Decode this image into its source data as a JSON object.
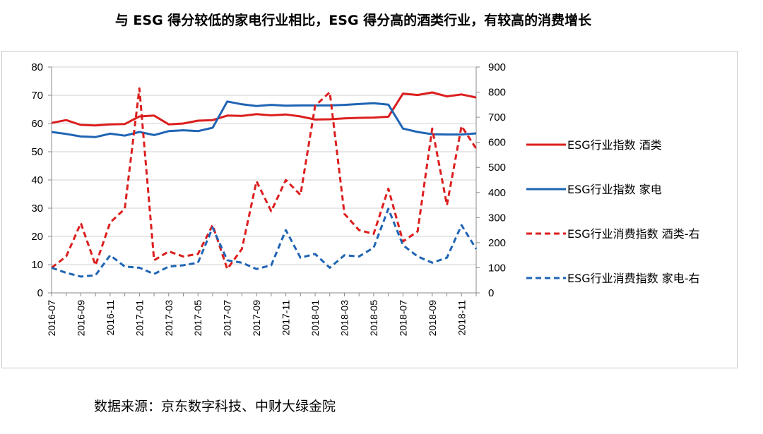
{
  "title": "与 ESG 得分较低的家电行业相比，ESG  得分高的酒类行业，有较高的消费增长",
  "source": "数据来源：京东数字科技、中财大绿金院",
  "chart_data": {
    "type": "line",
    "left_ylim": [
      0,
      80
    ],
    "left_yticks": [
      "0",
      "10",
      "20",
      "30",
      "40",
      "50",
      "60",
      "70",
      "80"
    ],
    "right_ylim": [
      0,
      900
    ],
    "right_yticks": [
      "0",
      "100",
      "200",
      "300",
      "400",
      "500",
      "600",
      "700",
      "800",
      "900"
    ],
    "grid": "horizontal",
    "legend_position": "right",
    "x": [
      "2016-07",
      "2016-08",
      "2016-09",
      "2016-10",
      "2016-11",
      "2016-12",
      "2017-01",
      "2017-02",
      "2017-03",
      "2017-04",
      "2017-05",
      "2017-06",
      "2017-07",
      "2017-08",
      "2017-09",
      "2017-10",
      "2017-11",
      "2017-12",
      "2018-01",
      "2018-02",
      "2018-03",
      "2018-04",
      "2018-05",
      "2018-06",
      "2018-07",
      "2018-08",
      "2018-09",
      "2018-10",
      "2018-11",
      "2018-12"
    ],
    "xtick_labels": [
      "2016-07",
      "2016-09",
      "2016-11",
      "2017-01",
      "2017-03",
      "2017-05",
      "2017-07",
      "2017-09",
      "2017-11",
      "2018-01",
      "2018-03",
      "2018-05",
      "2018-07",
      "2018-09",
      "2018-11"
    ],
    "series": [
      {
        "name": "ESG行业指数 酒类",
        "axis": "left",
        "color": "#dc1e1e",
        "dash": false,
        "values": [
          60.2,
          61.2,
          59.5,
          59.3,
          59.7,
          59.8,
          62.5,
          62.8,
          59.7,
          60.0,
          61.0,
          61.2,
          62.8,
          62.7,
          63.3,
          62.9,
          63.2,
          62.5,
          61.4,
          61.5,
          61.8,
          62.0,
          62.1,
          62.4,
          70.6,
          70.1,
          71.0,
          69.6,
          70.3,
          69.2
        ]
      },
      {
        "name": "ESG行业指数 家电",
        "axis": "left",
        "color": "#1f64b4",
        "dash": false,
        "values": [
          57.0,
          56.3,
          55.4,
          55.2,
          56.4,
          55.7,
          57.0,
          55.9,
          57.3,
          57.6,
          57.3,
          58.5,
          67.8,
          66.8,
          66.2,
          66.6,
          66.3,
          66.4,
          66.4,
          66.4,
          66.6,
          66.9,
          67.2,
          66.7,
          58.2,
          57.0,
          56.2,
          56.1,
          56.1,
          56.5
        ]
      },
      {
        "name": "ESG行业消费指数 酒类-右",
        "axis": "right",
        "color": "#dc1e1e",
        "dash": true,
        "values": [
          100,
          145,
          278,
          110,
          280,
          335,
          815,
          130,
          165,
          145,
          155,
          270,
          95,
          175,
          445,
          325,
          450,
          390,
          745,
          800,
          315,
          250,
          235,
          415,
          205,
          245,
          655,
          350,
          665,
          575
        ]
      },
      {
        "name": "ESG行业消费指数 家电-右",
        "axis": "right",
        "color": "#1f64b4",
        "dash": true,
        "values": [
          100,
          80,
          65,
          70,
          150,
          105,
          100,
          75,
          105,
          110,
          120,
          260,
          130,
          120,
          95,
          110,
          250,
          140,
          155,
          100,
          150,
          145,
          180,
          335,
          190,
          145,
          120,
          140,
          270,
          175
        ]
      }
    ]
  }
}
